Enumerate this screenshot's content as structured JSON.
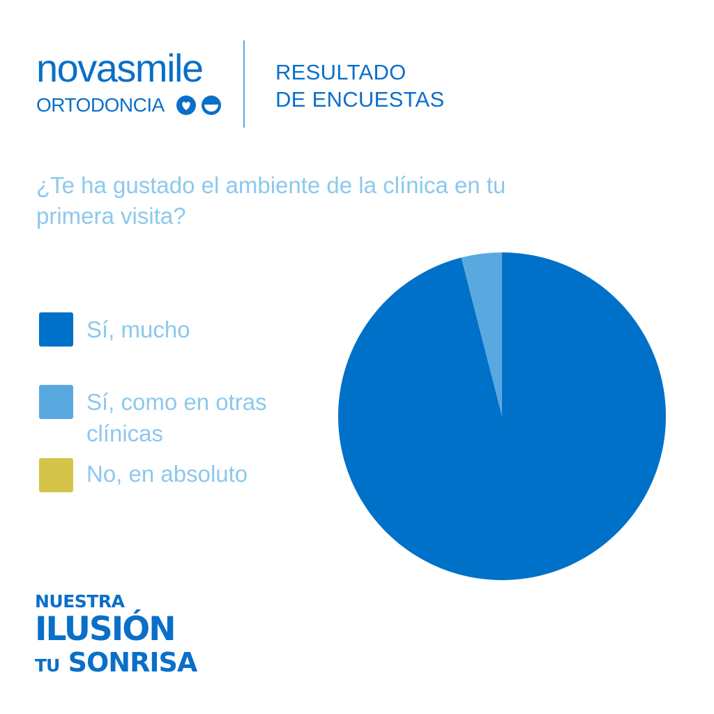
{
  "brand": {
    "name": "novasmile",
    "subtitle": "ORTODONCIA",
    "icons": [
      "heart-icon",
      "smile-icon"
    ],
    "color": "#0a6fc8"
  },
  "header": {
    "line1": "RESULTADO",
    "line2": "DE ENCUESTAS"
  },
  "question": "¿Te ha gustado el ambiente de la clínica en tu primera visita?",
  "slogan": {
    "line1": "NUESTRA",
    "line2": "ILUSIÓN",
    "line3_a": "TU",
    "line3_b": "SONRISA"
  },
  "chart_data": {
    "type": "pie",
    "title": "¿Te ha gustado el ambiente de la clínica en tu primera visita?",
    "legend_position": "left",
    "categories": [
      "Sí, mucho",
      "Sí, como en otras clínicas",
      "No, en absoluto"
    ],
    "values": [
      96,
      4,
      0
    ],
    "colors": [
      "#0071c8",
      "#59a9e0",
      "#d4c44a"
    ]
  }
}
